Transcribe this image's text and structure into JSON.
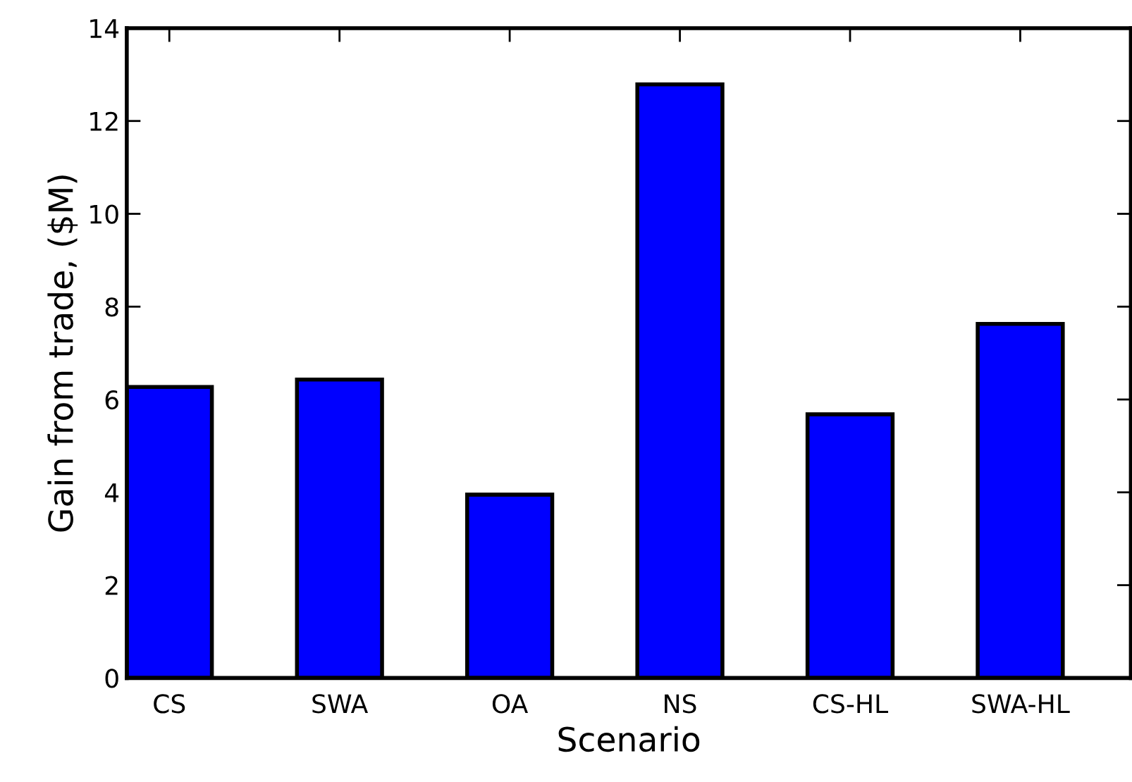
{
  "chart_data": {
    "type": "bar",
    "xlabel": "Scenario",
    "ylabel": "Gain from trade, ($M)",
    "categories": [
      "CS",
      "SWA",
      "OA",
      "NS",
      "CS-HL",
      "SWA-HL"
    ],
    "values": [
      6.27,
      6.43,
      3.95,
      12.79,
      5.68,
      7.63
    ],
    "color": "#0000ff",
    "ylim": [
      0,
      14
    ],
    "yticks": [
      0,
      2,
      4,
      6,
      8,
      10,
      12,
      14
    ],
    "grid": false
  }
}
